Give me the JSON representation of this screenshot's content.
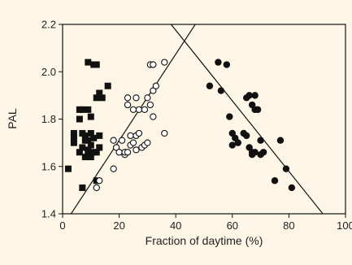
{
  "chart_data": {
    "type": "scatter",
    "xlabel": "Fraction of daytime (%)",
    "ylabel": "PAL",
    "xlim": [
      0,
      100
    ],
    "ylim": [
      1.4,
      2.2
    ],
    "x_ticks": [
      0,
      20,
      40,
      60,
      80,
      100
    ],
    "y_ticks": [
      1.4,
      1.6,
      1.8,
      2.0,
      2.2
    ],
    "x_tick_labels": [
      "0",
      "20",
      "40",
      "60",
      "80",
      "100"
    ],
    "y_tick_labels": [
      "1.4",
      "1.6",
      "1.8",
      "2.0",
      "2.2"
    ],
    "grid": false,
    "series": [
      {
        "marker": "filled-square",
        "color": "#111111",
        "points": [
          [
            2,
            1.59
          ],
          [
            4,
            1.72
          ],
          [
            4,
            1.74
          ],
          [
            4,
            1.7
          ],
          [
            6,
            1.84
          ],
          [
            6,
            1.8
          ],
          [
            6,
            1.66
          ],
          [
            7,
            1.74
          ],
          [
            7,
            1.84
          ],
          [
            7,
            1.68
          ],
          [
            7,
            1.51
          ],
          [
            8,
            1.64
          ],
          [
            8,
            1.71
          ],
          [
            8,
            1.73
          ],
          [
            9,
            2.04
          ],
          [
            9,
            1.84
          ],
          [
            9,
            1.71
          ],
          [
            9,
            1.67
          ],
          [
            9,
            1.66
          ],
          [
            10,
            1.81
          ],
          [
            10,
            1.69
          ],
          [
            10,
            1.64
          ],
          [
            10,
            1.74
          ],
          [
            11,
            2.03
          ],
          [
            11,
            1.66
          ],
          [
            11,
            1.72
          ],
          [
            12,
            2.03
          ],
          [
            12,
            1.89
          ],
          [
            12,
            1.54
          ],
          [
            12,
            1.66
          ],
          [
            13,
            1.91
          ],
          [
            13,
            1.73
          ],
          [
            13,
            1.68
          ],
          [
            14,
            1.89
          ],
          [
            16,
            1.94
          ]
        ]
      },
      {
        "marker": "open-circle",
        "color": "#111111",
        "points": [
          [
            12,
            1.51
          ],
          [
            13,
            1.54
          ],
          [
            18,
            1.59
          ],
          [
            18,
            1.71
          ],
          [
            19,
            1.68
          ],
          [
            20,
            1.66
          ],
          [
            21,
            1.71
          ],
          [
            22,
            1.65
          ],
          [
            22,
            1.66
          ],
          [
            23,
            1.86
          ],
          [
            23,
            1.89
          ],
          [
            23,
            1.66
          ],
          [
            24,
            1.73
          ],
          [
            24,
            1.69
          ],
          [
            25,
            1.84
          ],
          [
            25,
            1.7
          ],
          [
            26,
            1.73
          ],
          [
            26,
            1.89
          ],
          [
            26,
            1.67
          ],
          [
            27,
            1.84
          ],
          [
            27,
            1.74
          ],
          [
            28,
            1.68
          ],
          [
            29,
            1.84
          ],
          [
            29,
            1.69
          ],
          [
            30,
            1.89
          ],
          [
            30,
            1.7
          ],
          [
            31,
            1.86
          ],
          [
            31,
            2.03
          ],
          [
            32,
            2.03
          ],
          [
            32,
            1.92
          ],
          [
            32,
            1.81
          ],
          [
            33,
            1.94
          ],
          [
            36,
            2.04
          ],
          [
            36,
            1.74
          ]
        ]
      },
      {
        "marker": "filled-circle",
        "color": "#111111",
        "points": [
          [
            52,
            1.94
          ],
          [
            55,
            2.04
          ],
          [
            56,
            1.92
          ],
          [
            58,
            2.03
          ],
          [
            59,
            1.81
          ],
          [
            60,
            1.74
          ],
          [
            60,
            1.69
          ],
          [
            61,
            1.72
          ],
          [
            62,
            1.7
          ],
          [
            64,
            1.74
          ],
          [
            65,
            1.89
          ],
          [
            65,
            1.73
          ],
          [
            66,
            1.9
          ],
          [
            66,
            1.68
          ],
          [
            67,
            1.65
          ],
          [
            67,
            1.66
          ],
          [
            67,
            1.86
          ],
          [
            68,
            1.84
          ],
          [
            68,
            1.9
          ],
          [
            68,
            1.66
          ],
          [
            69,
            1.84
          ],
          [
            70,
            1.65
          ],
          [
            70,
            1.71
          ],
          [
            71,
            1.66
          ],
          [
            75,
            1.54
          ],
          [
            77,
            1.71
          ],
          [
            79,
            1.59
          ],
          [
            81,
            1.51
          ]
        ]
      }
    ],
    "lines": [
      {
        "from": [
          3,
          1.4
        ],
        "to": [
          48,
          2.22
        ]
      },
      {
        "from": [
          37,
          2.22
        ],
        "to": [
          92,
          1.4
        ]
      }
    ]
  }
}
